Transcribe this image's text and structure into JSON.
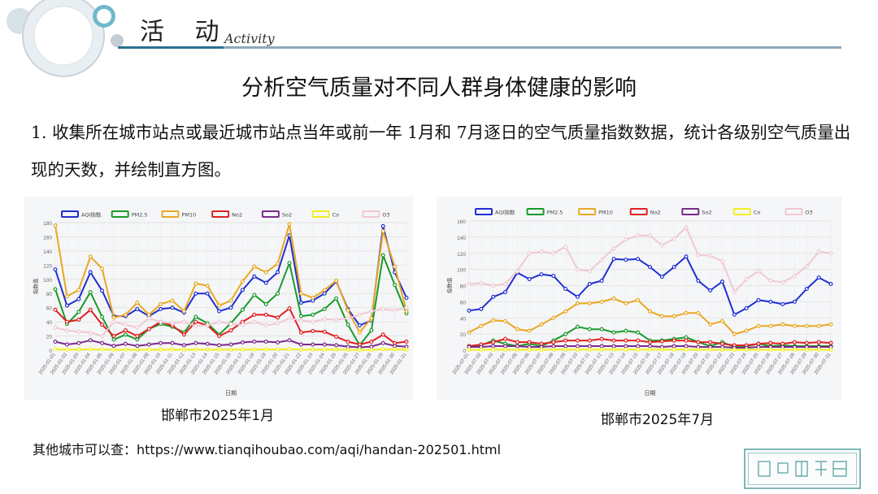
{
  "header": {
    "title": "活 动",
    "subtitle": "Activity"
  },
  "main_title": "分析空气质量对不同人群身体健康的影响",
  "paragraph": "1. 收集所在城市站点或最近城市站点当年或前一年 1月和 7月逐日的空气质量指数数据，统计各级别空气质量出现的天数，并绘制直方图。",
  "footer": "其他城市可以查：https://www.tianqihoubao.com/aqi/handan-202501.html",
  "colors": {
    "aqi": "#1f2fd0",
    "pm25": "#1a9a2a",
    "pm10": "#e8a820",
    "no2": "#e02020",
    "so2": "#7a2a8a",
    "co": "#f0f020",
    "o3": "#f0c8d4",
    "accent": "#2a6f8c"
  },
  "chart_data": [
    {
      "type": "line",
      "caption": "邯郸市2025年1月",
      "xlabel": "日期",
      "ylabel": "指数值",
      "ylim": [
        0,
        180
      ],
      "yticks": [
        0,
        20,
        40,
        60,
        80,
        100,
        120,
        140,
        160,
        180
      ],
      "grid": true,
      "legend_position": "top",
      "x": [
        "2025-01-01",
        "2025-01-02",
        "2025-01-03",
        "2025-01-04",
        "2025-01-05",
        "2025-01-06",
        "2025-01-07",
        "2025-01-08",
        "2025-01-09",
        "2025-01-10",
        "2025-01-11",
        "2025-01-12",
        "2025-01-13",
        "2025-01-14",
        "2025-01-15",
        "2025-01-16",
        "2025-01-17",
        "2025-01-18",
        "2025-01-19",
        "2025-01-20",
        "2025-01-21",
        "2025-01-22",
        "2025-01-23",
        "2025-01-24",
        "2025-01-25",
        "2025-01-26",
        "2025-01-27",
        "2025-01-28",
        "2025-01-29",
        "2025-01-30",
        "2025-01-31"
      ],
      "series": [
        {
          "name": "AQI指数",
          "color_key": "aqi",
          "values": [
            114,
            63,
            72,
            110,
            84,
            48,
            48,
            58,
            48,
            58,
            60,
            53,
            80,
            80,
            55,
            60,
            85,
            104,
            95,
            110,
            162,
            67,
            70,
            80,
            97,
            58,
            35,
            42,
            175,
            110,
            74
          ]
        },
        {
          "name": "PM2.5",
          "color_key": "pm25",
          "values": [
            86,
            37,
            54,
            82,
            47,
            15,
            22,
            15,
            30,
            37,
            33,
            25,
            47,
            38,
            22,
            38,
            57,
            78,
            65,
            80,
            123,
            48,
            50,
            58,
            73,
            36,
            7,
            28,
            134,
            92,
            52
          ]
        },
        {
          "name": "PM10",
          "color_key": "pm10",
          "values": [
            176,
            76,
            85,
            132,
            115,
            46,
            50,
            67,
            50,
            65,
            70,
            55,
            94,
            91,
            63,
            70,
            97,
            118,
            110,
            122,
            178,
            80,
            74,
            85,
            98,
            56,
            25,
            45,
            168,
            118,
            55
          ]
        },
        {
          "name": "No2",
          "color_key": "no2",
          "values": [
            57,
            40,
            43,
            57,
            36,
            20,
            28,
            20,
            30,
            40,
            35,
            22,
            40,
            35,
            20,
            28,
            40,
            50,
            50,
            46,
            59,
            25,
            27,
            26,
            19,
            12,
            8,
            12,
            22,
            10,
            12
          ]
        },
        {
          "name": "So2",
          "color_key": "so2",
          "values": [
            12,
            8,
            10,
            14,
            10,
            6,
            9,
            6,
            8,
            10,
            10,
            7,
            10,
            9,
            7,
            8,
            11,
            12,
            12,
            11,
            14,
            8,
            8,
            8,
            7,
            5,
            4,
            5,
            10,
            6,
            5
          ]
        },
        {
          "name": "Co",
          "color_key": "co",
          "values": [
            1.5,
            0.9,
            1.0,
            1.4,
            1.1,
            0.6,
            0.7,
            0.6,
            0.7,
            0.8,
            0.8,
            0.7,
            1.0,
            0.9,
            0.7,
            0.8,
            1.0,
            1.2,
            1.1,
            1.2,
            1.6,
            0.8,
            0.8,
            0.9,
            1.0,
            0.6,
            0.4,
            0.5,
            1.5,
            1.1,
            0.8
          ]
        },
        {
          "name": "O3",
          "color_key": "o3",
          "values": [
            32,
            28,
            26,
            25,
            20,
            40,
            36,
            32,
            45,
            40,
            38,
            40,
            34,
            35,
            40,
            37,
            36,
            40,
            35,
            38,
            45,
            42,
            40,
            44,
            43,
            45,
            50,
            55,
            58,
            56,
            60
          ]
        }
      ]
    },
    {
      "type": "line",
      "caption": "邯郸市2025年7月",
      "xlabel": "日期",
      "ylabel": "指数值",
      "ylim": [
        0,
        160
      ],
      "yticks": [
        0,
        20,
        40,
        60,
        80,
        100,
        120,
        140,
        160
      ],
      "grid": true,
      "legend_position": "top",
      "x": [
        "2025-07-01",
        "2025-07-02",
        "2025-07-03",
        "2025-07-04",
        "2025-07-05",
        "2025-07-06",
        "2025-07-07",
        "2025-07-08",
        "2025-07-09",
        "2025-07-10",
        "2025-07-11",
        "2025-07-12",
        "2025-07-13",
        "2025-07-14",
        "2025-07-15",
        "2025-07-16",
        "2025-07-17",
        "2025-07-18",
        "2025-07-19",
        "2025-07-20",
        "2025-07-21",
        "2025-07-22",
        "2025-07-23",
        "2025-07-24",
        "2025-07-25",
        "2025-07-26",
        "2025-07-27",
        "2025-07-28",
        "2025-07-29",
        "2025-07-30",
        "2025-07-31"
      ],
      "series": [
        {
          "name": "AQI指数",
          "color_key": "aqi",
          "values": [
            49,
            51,
            66,
            72,
            96,
            88,
            94,
            92,
            76,
            66,
            82,
            86,
            113,
            112,
            113,
            103,
            91,
            103,
            116,
            86,
            74,
            85,
            44,
            52,
            62,
            60,
            57,
            60,
            76,
            90,
            82
          ]
        },
        {
          "name": "PM2.5",
          "color_key": "pm25",
          "values": [
            5,
            6,
            12,
            8,
            5,
            8,
            5,
            12,
            20,
            29,
            26,
            26,
            22,
            24,
            22,
            12,
            12,
            14,
            16,
            10,
            5,
            10,
            4,
            5,
            8,
            5,
            6,
            5,
            5,
            5,
            5
          ]
        },
        {
          "name": "PM10",
          "color_key": "pm10",
          "values": [
            22,
            30,
            37,
            36,
            26,
            24,
            32,
            40,
            48,
            58,
            58,
            60,
            64,
            58,
            62,
            48,
            42,
            42,
            46,
            46,
            32,
            36,
            20,
            24,
            30,
            30,
            32,
            30,
            30,
            30,
            32
          ]
        },
        {
          "name": "No2",
          "color_key": "no2",
          "values": [
            5,
            7,
            10,
            14,
            10,
            10,
            8,
            10,
            12,
            12,
            12,
            14,
            12,
            12,
            12,
            10,
            11,
            12,
            12,
            10,
            10,
            8,
            6,
            6,
            8,
            9,
            8,
            10,
            9,
            10,
            9
          ]
        },
        {
          "name": "So2",
          "color_key": "so2",
          "values": [
            4,
            4,
            5,
            5,
            5,
            4,
            4,
            5,
            5,
            5,
            5,
            5,
            5,
            5,
            5,
            5,
            4,
            5,
            5,
            4,
            4,
            4,
            3,
            3,
            4,
            4,
            4,
            4,
            4,
            4,
            4
          ]
        },
        {
          "name": "Co",
          "color_key": "co",
          "values": [
            0.6,
            0.6,
            0.7,
            0.7,
            0.6,
            0.6,
            0.6,
            0.7,
            0.7,
            0.7,
            0.7,
            0.8,
            0.8,
            0.7,
            0.8,
            0.7,
            0.7,
            0.7,
            0.8,
            0.7,
            0.6,
            0.6,
            0.5,
            0.5,
            0.6,
            0.6,
            0.6,
            0.6,
            0.6,
            0.6,
            0.6
          ]
        },
        {
          "name": "O3",
          "color_key": "o3",
          "values": [
            82,
            83,
            80,
            82,
            98,
            120,
            122,
            120,
            128,
            100,
            98,
            112,
            126,
            137,
            142,
            142,
            130,
            138,
            152,
            118,
            117,
            110,
            72,
            88,
            98,
            86,
            84,
            92,
            104,
            122,
            120
          ]
        }
      ]
    }
  ]
}
